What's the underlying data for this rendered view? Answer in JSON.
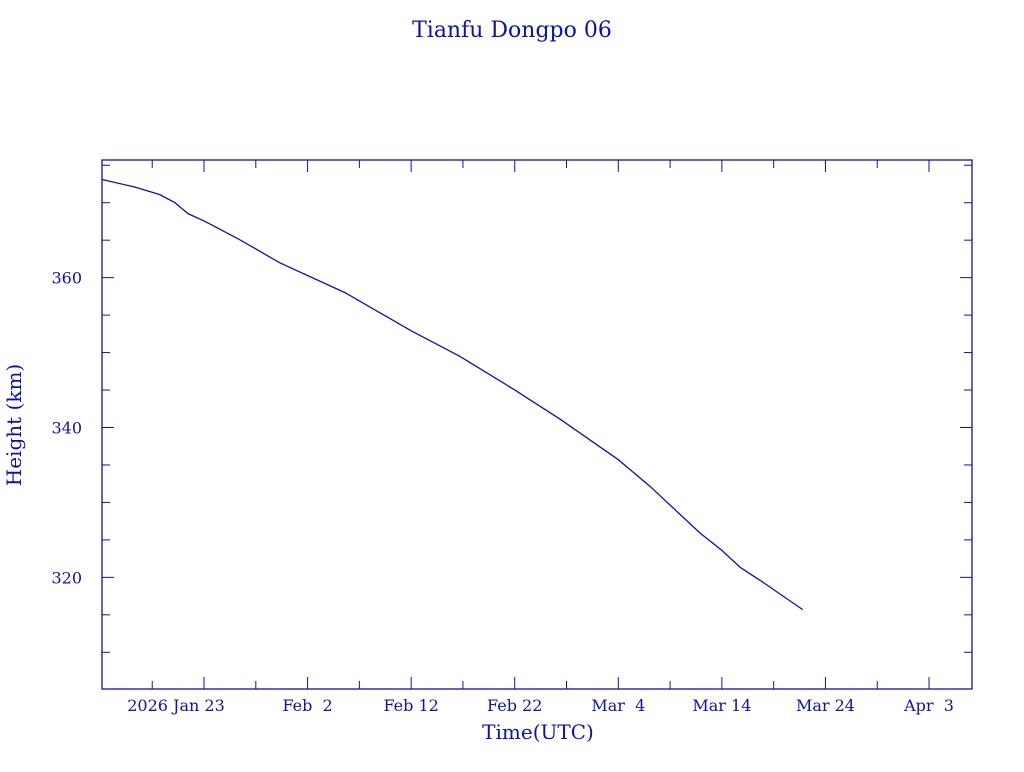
{
  "chart_data": {
    "type": "line",
    "title": "Tianfu Dongpo 06",
    "xlabel": "Time(UTC)",
    "ylabel": "Height (km)",
    "x_units": "days since 2026 Jan 23 (UTC)",
    "xlim": [
      -9.85,
      74.15
    ],
    "ylim": [
      305.1,
      375.7
    ],
    "x_ticks": [
      {
        "value": 0,
        "label": "2026 Jan 23"
      },
      {
        "value": 10,
        "label": "Feb  2"
      },
      {
        "value": 20,
        "label": "Feb 12"
      },
      {
        "value": 30,
        "label": "Feb 22"
      },
      {
        "value": 40,
        "label": "Mar  4"
      },
      {
        "value": 50,
        "label": "Mar 14"
      },
      {
        "value": 60,
        "label": "Mar 24"
      },
      {
        "value": 70,
        "label": "Apr  3"
      }
    ],
    "x_minor_step": 5,
    "y_ticks": [
      {
        "value": 320,
        "label": "320"
      },
      {
        "value": 340,
        "label": "340"
      },
      {
        "value": 360,
        "label": "360"
      }
    ],
    "y_minor_step": 5,
    "grid": false,
    "color": "#1010a8",
    "series": [
      {
        "name": "Height",
        "x": [
          -9.85,
          -6.7,
          -4.3,
          -2.8,
          -2.2,
          -1.5,
          0.1,
          3.4,
          7.3,
          13.6,
          20.0,
          24.7,
          29.9,
          34.4,
          40.0,
          43.1,
          47.9,
          50.0,
          51.8,
          53.7,
          57.8
        ],
        "y": [
          373.1,
          372.1,
          371.1,
          370.0,
          369.3,
          368.5,
          367.5,
          365.1,
          362.0,
          358.0,
          352.9,
          349.5,
          345.1,
          341.1,
          335.7,
          332.1,
          325.9,
          323.6,
          321.3,
          319.6,
          315.7
        ]
      }
    ]
  }
}
